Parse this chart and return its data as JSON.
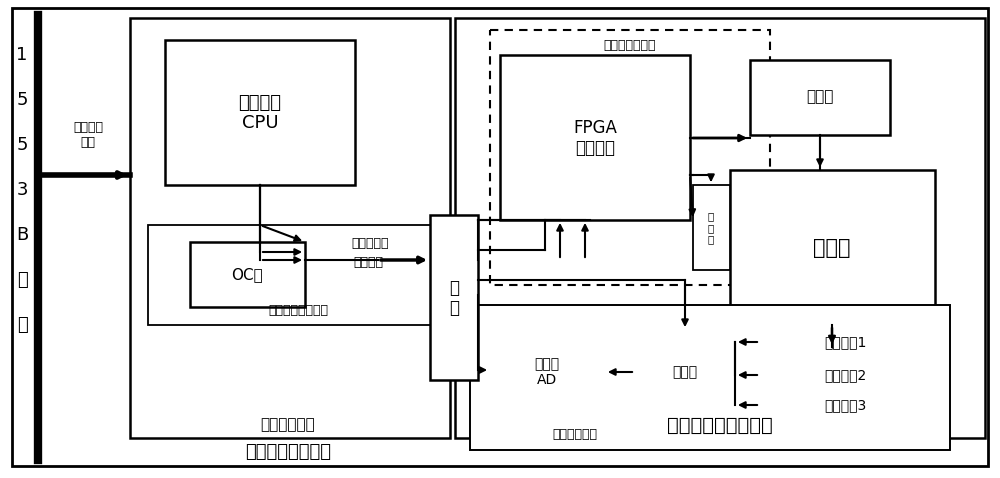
{
  "fig_width": 10.0,
  "fig_height": 4.78,
  "bg_color": "#ffffff",
  "bus_text": [
    "1",
    "5",
    "5",
    "3",
    "B",
    "总",
    "线"
  ],
  "label_chengxiang": "成像控制\n指令",
  "label_cpu": "管理功能\nCPU",
  "label_oc": "OC门",
  "label_jiadu_cmd": "加断电指令",
  "label_sanxian": "三线传输",
  "label_zhingling": "指令传输链路模块",
  "label_guangou": "光\n耦",
  "label_fpga": "FPGA\n三模冗余",
  "label_jiadu_module": "加断电控制模块",
  "label_relay": "继电器",
  "label_detector": "探测器",
  "label_zhilengqi": "制\n冷\n器",
  "label_ad": "高精度\nAD",
  "label_selector": "选择器",
  "label_temp1": "测温电路1",
  "label_temp2": "测温电路2",
  "label_temp3": "测温电路3",
  "label_temp_module": "温度采集模块",
  "label_mgmt_unit": "管理控制单元",
  "label_right_unit": "红外探测器控制单元",
  "label_left_payload": "红外成像有效载荷"
}
